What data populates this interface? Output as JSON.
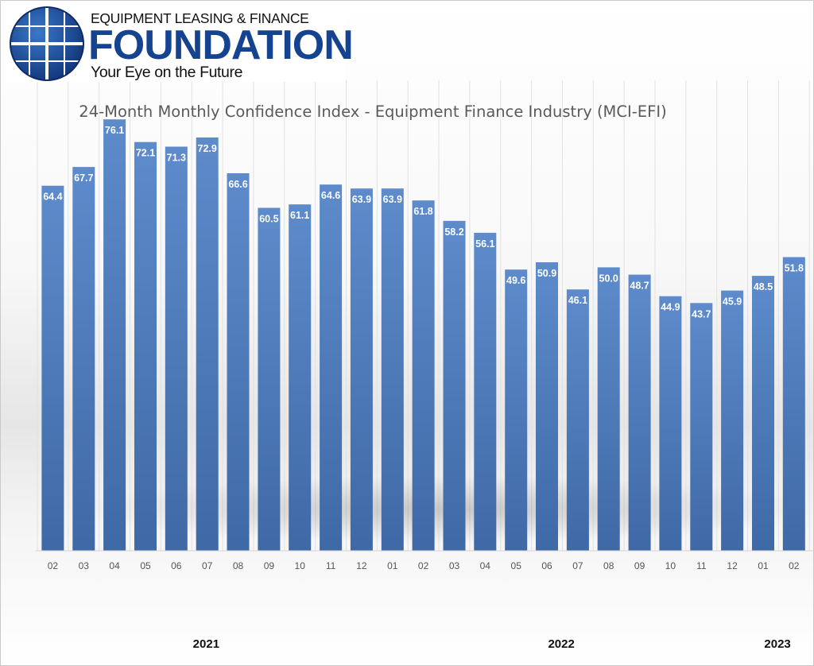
{
  "logo": {
    "line1": "EQUIPMENT LEASING & FINANCE",
    "line2": "FOUNDATION",
    "line3": "Your Eye on the Future"
  },
  "colors": {
    "bar_top": "#5d8bcb",
    "bar_bottom": "#3f69a6",
    "logo_blue": "#15438f",
    "label": "#ffffff",
    "axis_text": "#555555"
  },
  "chart_data": {
    "type": "bar",
    "title": "24-Month Monthly Confidence Index - Equipment Finance Industry (MCI-EFI)",
    "xlabel": "",
    "ylabel": "",
    "categories": [
      "02",
      "03",
      "04",
      "05",
      "06",
      "07",
      "08",
      "09",
      "10",
      "11",
      "12",
      "01",
      "02",
      "03",
      "04",
      "05",
      "06",
      "07",
      "08",
      "09",
      "10",
      "11",
      "12",
      "01",
      "02"
    ],
    "values": [
      64.4,
      67.7,
      76.1,
      72.1,
      71.3,
      72.9,
      66.6,
      60.5,
      61.1,
      64.6,
      63.9,
      63.9,
      61.8,
      58.2,
      56.1,
      49.6,
      50.9,
      46.1,
      50.0,
      48.7,
      44.9,
      43.7,
      45.9,
      48.5,
      51.8
    ],
    "data_labels": [
      "64.4",
      "67.7",
      "76.1",
      "72.1",
      "71.3",
      "72.9",
      "66.6",
      "60.5",
      "61.1",
      "64.6",
      "63.9",
      "63.9",
      "61.8",
      "58.2",
      "56.1",
      "49.6",
      "50.9",
      "46.1",
      "50.0",
      "48.7",
      "44.9",
      "43.7",
      "45.9",
      "48.5",
      "51.8"
    ],
    "ylim": [
      0,
      83
    ],
    "gridlines": "vertical",
    "year_labels": [
      {
        "text": "2021",
        "first_index": 0,
        "last_index": 10
      },
      {
        "text": "2022",
        "first_index": 11,
        "last_index": 22
      },
      {
        "text": "2023",
        "first_index": 23,
        "last_index": 24
      }
    ]
  }
}
